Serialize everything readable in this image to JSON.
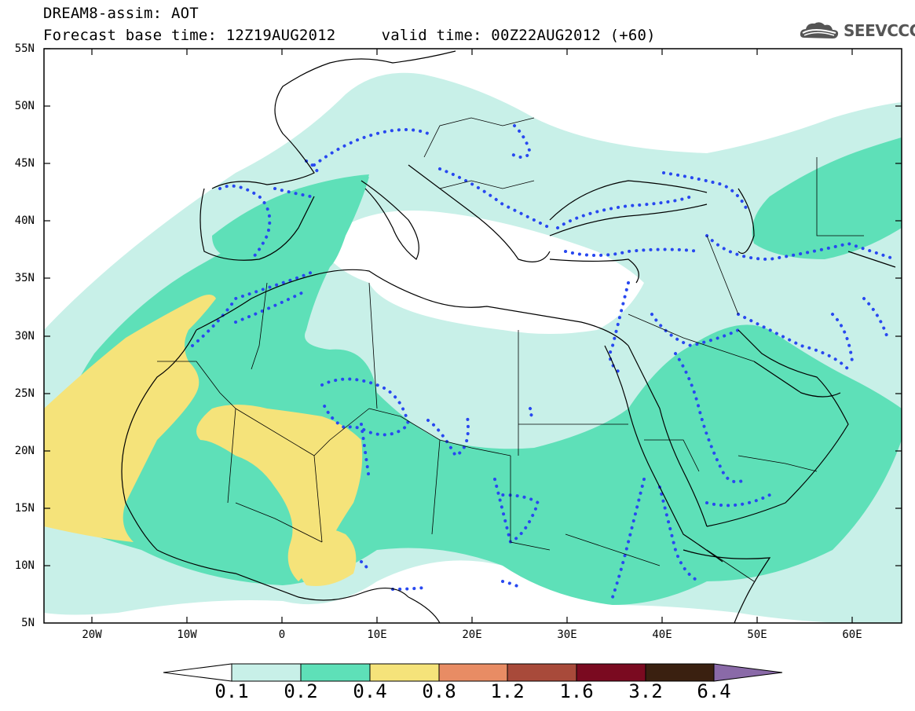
{
  "title": {
    "line1": "DREAM8-assim: AOT",
    "line2": "Forecast base time: 12Z19AUG2012     valid time: 00Z22AUG2012 (+60)"
  },
  "logo": {
    "text": "SEEVCCC",
    "icon": "cloud-logo-icon"
  },
  "map": {
    "lat_ticks": [
      "55N",
      "50N",
      "45N",
      "40N",
      "35N",
      "30N",
      "25N",
      "20N",
      "15N",
      "10N",
      "5N"
    ],
    "lon_ticks": [
      "20W",
      "10W",
      "0",
      "10E",
      "20E",
      "30E",
      "40E",
      "50E",
      "60E"
    ],
    "lon_range": [
      -25,
      65
    ],
    "lat_range": [
      5,
      55
    ]
  },
  "colorbar": {
    "labels": [
      "0.1",
      "0.2",
      "0.4",
      "0.8",
      "1.2",
      "1.6",
      "3.2",
      "6.4"
    ],
    "colors": [
      "#ffffff",
      "#c8f0e8",
      "#5ee0b8",
      "#f5e37a",
      "#e88c64",
      "#a84a3a",
      "#7a0a20",
      "#3a2010",
      "#8a6aa8"
    ]
  },
  "fields": {
    "aot_colors": {
      "low": "#c8f0e8",
      "mid": "#5ee0b8",
      "high": "#f5e37a"
    },
    "dotted_contour_color": "#2848f0"
  }
}
